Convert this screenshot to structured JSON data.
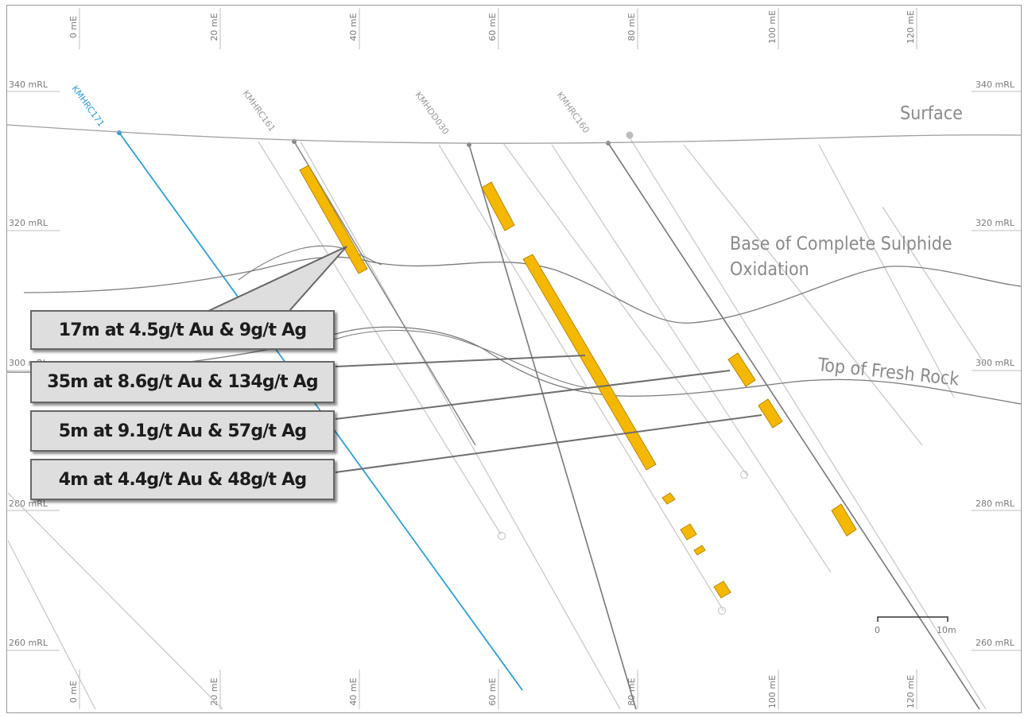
{
  "axes": {
    "easting_labels": [
      "0 mE",
      "20 mE",
      "40 mE",
      "60 mE",
      "80 mE",
      "100 mE",
      "120 mE"
    ],
    "rl_labels": [
      "340 mRL",
      "320 mRL",
      "300 mRL",
      "280 mRL",
      "260 mRL"
    ]
  },
  "holes": [
    "KMHRC171",
    "KMHRC161",
    "KMHDD030",
    "KMHRC160"
  ],
  "features": {
    "surface": "Surface",
    "base_oxidation_line1": "Base of Complete Sulphide",
    "base_oxidation_line2": "Oxidation",
    "top_fresh": "Top of Fresh Rock"
  },
  "intercepts": [
    "17m at 4.5g/t Au & 9g/t Ag",
    "35m at 8.6g/t Au & 134g/t Ag",
    "5m at 9.1g/t Au & 57g/t Ag",
    "4m at 4.4g/t Au & 48g/t Ag"
  ],
  "scale_bar": {
    "start": "0",
    "end": "10m"
  },
  "colors": {
    "intercept": "#f5b800",
    "highlight_hole": "#2a9fd6",
    "grid": "#c8c8c8"
  }
}
